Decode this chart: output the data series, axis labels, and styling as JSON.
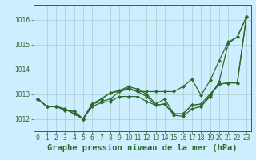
{
  "title": "Graphe pression niveau de la mer (hPa)",
  "bg_color": "#cceeff",
  "grid_color": "#aacccc",
  "line_color": "#2d6a2d",
  "text_color": "#2d6a2d",
  "xlim": [
    -0.5,
    23.5
  ],
  "ylim": [
    1011.5,
    1016.6
  ],
  "yticks": [
    1012,
    1013,
    1014,
    1015,
    1016
  ],
  "xticks": [
    0,
    1,
    2,
    3,
    4,
    5,
    6,
    7,
    8,
    9,
    10,
    11,
    12,
    13,
    14,
    15,
    16,
    17,
    18,
    19,
    20,
    21,
    22,
    23
  ],
  "series": [
    [
      1012.8,
      1012.5,
      1012.5,
      1012.4,
      1012.2,
      1012.0,
      1012.6,
      1012.7,
      1012.8,
      1013.1,
      1013.2,
      1013.1,
      1012.9,
      1012.55,
      1012.6,
      1012.15,
      1012.1,
      1012.4,
      1012.5,
      1012.9,
      1013.5,
      1015.05,
      1015.3,
      1016.1
    ],
    [
      1012.8,
      1012.5,
      1012.5,
      1012.35,
      1012.3,
      1012.0,
      1012.6,
      1012.8,
      1013.05,
      1013.1,
      1013.25,
      1013.1,
      1013.1,
      1013.1,
      1013.1,
      1013.1,
      1013.3,
      1013.6,
      1012.95,
      1013.55,
      1014.35,
      1015.1,
      1015.3,
      1016.1
    ],
    [
      1012.8,
      1012.5,
      1012.5,
      1012.35,
      1012.3,
      1012.0,
      1012.6,
      1012.8,
      1013.05,
      1013.15,
      1013.3,
      1013.2,
      1013.0,
      1012.6,
      1012.8,
      1012.2,
      1012.2,
      1012.55,
      1012.6,
      1013.0,
      1013.4,
      1013.45,
      1013.45,
      1016.1
    ],
    [
      1012.8,
      1012.5,
      1012.5,
      1012.4,
      1012.2,
      1012.0,
      1012.5,
      1012.65,
      1012.7,
      1012.9,
      1012.9,
      1012.9,
      1012.7,
      1012.55,
      1012.6,
      1012.2,
      1012.2,
      1012.55,
      1012.5,
      1012.95,
      1013.4,
      1013.45,
      1013.45,
      1016.1
    ]
  ],
  "marker": "D",
  "markersize": 2,
  "linewidth": 0.9,
  "title_fontsize": 7.5,
  "tick_fontsize": 5.5
}
